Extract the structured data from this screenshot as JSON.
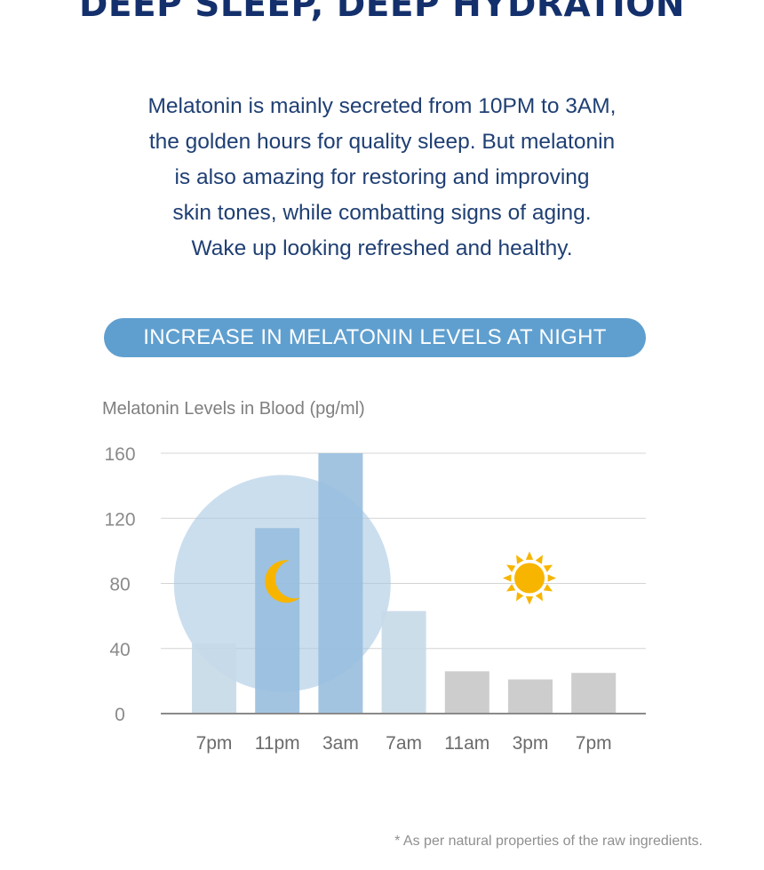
{
  "header": {
    "title": "DEEP SLEEP, DEEP HYDRATION"
  },
  "intro": {
    "lines": [
      "Melatonin is mainly secreted from 10PM to 3AM,",
      "the golden hours for quality sleep. But melatonin",
      "is also amazing for restoring and improving",
      "skin tones, while combatting signs of aging.",
      "Wake up looking refreshed and healthy."
    ]
  },
  "banner": {
    "label": "INCREASE IN MELATONIN LEVELS AT NIGHT"
  },
  "chart_data": {
    "type": "bar",
    "title": "INCREASE IN MELATONIN LEVELS AT NIGHT",
    "ylabel": "Melatonin Levels in Blood (pg/ml)",
    "xlabel": "",
    "categories": [
      "7pm",
      "11pm",
      "3am",
      "7am",
      "11am",
      "3pm",
      "7pm"
    ],
    "values": [
      43,
      114,
      160,
      63,
      26,
      21,
      25
    ],
    "ylim": [
      0,
      160
    ],
    "yticks": [
      0,
      40,
      80,
      120,
      160
    ],
    "grid": true,
    "bar_colors": [
      "#c7d9e8",
      "#98bede",
      "#98bede",
      "#c7d9e8",
      "#c8c8c8",
      "#c8c8c8",
      "#c8c8c8"
    ],
    "night_circle_color": "#a9c8e3",
    "icons": {
      "night": "moon-icon",
      "day": "sun-icon"
    },
    "icon_color": "#f7b500"
  },
  "footnote": {
    "text": "* As per natural properties of the raw ingredients."
  }
}
